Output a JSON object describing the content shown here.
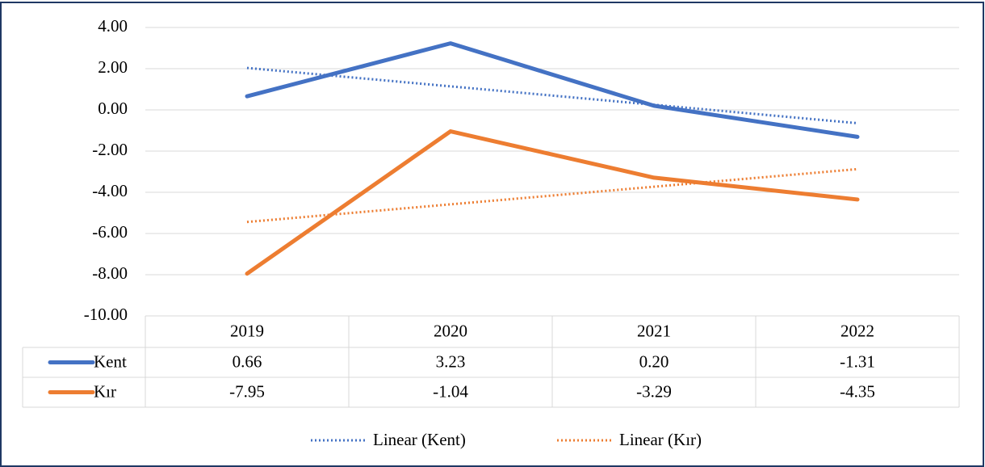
{
  "chart_data": {
    "type": "line",
    "categories": [
      "2019",
      "2020",
      "2021",
      "2022"
    ],
    "series": [
      {
        "name": "Kent",
        "color": "#4472c4",
        "values": [
          0.66,
          3.23,
          0.2,
          -1.31
        ],
        "value_labels": [
          "0.66",
          "3.23",
          "0.20",
          "-1.31"
        ],
        "trendline": "Linear (Kent)"
      },
      {
        "name": "Kır",
        "color": "#ed7d31",
        "values": [
          -7.95,
          -1.04,
          -3.29,
          -4.35
        ],
        "value_labels": [
          "-7.95",
          "-1.04",
          "-3.29",
          "-4.35"
        ],
        "trendline": "Linear (Kır)"
      }
    ],
    "ylim": [
      -10,
      4
    ],
    "yticks": [
      {
        "value": -10,
        "label": "-10.00"
      },
      {
        "value": -8,
        "label": "-8.00"
      },
      {
        "value": -6,
        "label": "-6.00"
      },
      {
        "value": -4,
        "label": "-4.00"
      },
      {
        "value": -2,
        "label": "-2.00"
      },
      {
        "value": 0,
        "label": "0.00"
      },
      {
        "value": 2,
        "label": "2.00"
      },
      {
        "value": 4,
        "label": "4.00"
      }
    ],
    "grid": true,
    "data_table": true,
    "legend": "bottom"
  }
}
